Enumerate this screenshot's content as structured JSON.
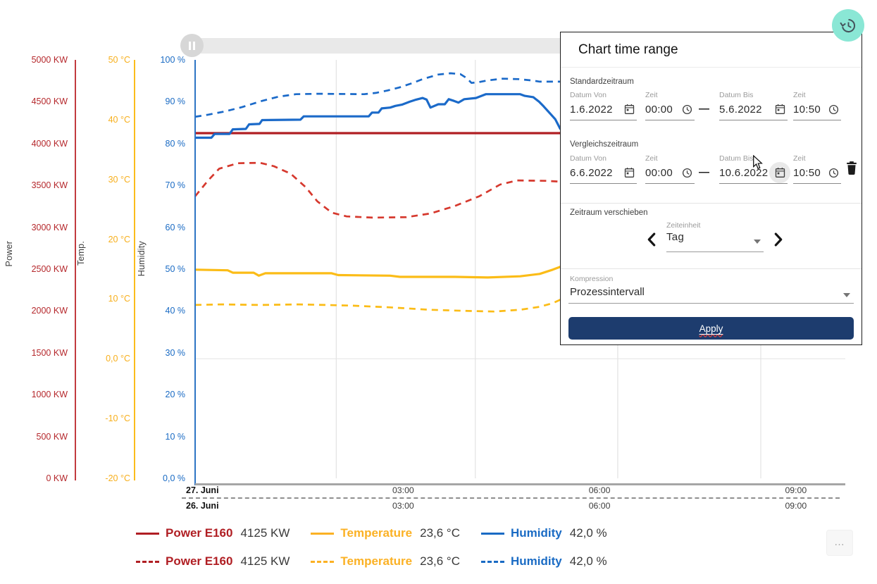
{
  "fab": {
    "icon": "history-icon",
    "color": "#8AE7D5"
  },
  "scrollbar": {
    "pause_icon": "pause-icon"
  },
  "more_button_label": "…",
  "dialog": {
    "title": "Chart time range",
    "range_separator": "—",
    "standard": {
      "label": "Standardzeitraum",
      "fields": [
        {
          "label": "Datum Von",
          "value": "1.6.2022",
          "icon": "calendar-icon"
        },
        {
          "label": "Zeit",
          "value": "00:00",
          "icon": "clock-icon"
        },
        {
          "label": "Datum Bis",
          "value": "5.6.2022",
          "icon": "calendar-icon"
        },
        {
          "label": "Zeit",
          "value": "10:50",
          "icon": "clock-icon"
        }
      ]
    },
    "comparison": {
      "label": "Vergleichszeitraum",
      "fields": [
        {
          "label": "Datum Von",
          "value": "6.6.2022",
          "icon": "calendar-icon"
        },
        {
          "label": "Zeit",
          "value": "00:00",
          "icon": "clock-icon"
        },
        {
          "label": "Datum Bis",
          "value": "10.6.2022",
          "icon": "calendar-icon"
        },
        {
          "label": "Zeit",
          "value": "10:50",
          "icon": "clock-icon"
        }
      ],
      "delete_icon": "trash-icon"
    },
    "shift": {
      "label": "Zeitraum verschieben",
      "unit_label": "Zeiteinheit",
      "unit_value": "Tag",
      "prev_icon": "chevron-left-icon",
      "next_icon": "chevron-right-icon"
    },
    "compression": {
      "label": "Kompression",
      "value": "Prozessintervall"
    },
    "apply_label": "Apply",
    "apply_color": "#1D3C6E"
  },
  "legend": {
    "rows": [
      {
        "style": "solid",
        "items": [
          {
            "label": "Power E160",
            "value": "4125 KW",
            "color": "#B01E23"
          },
          {
            "label": "Temperature",
            "value": "23,6 °C",
            "color": "#FBB124"
          },
          {
            "label": "Humidity",
            "value": "42,0 %",
            "color": "#1A6BC4"
          }
        ]
      },
      {
        "style": "dashed",
        "items": [
          {
            "label": "Power E160",
            "value": "4125 KW",
            "color": "#B01E23"
          },
          {
            "label": "Temperature",
            "value": "23,6 °C",
            "color": "#FBB124"
          },
          {
            "label": "Humidity",
            "value": "42,0 %",
            "color": "#1A6BC4"
          }
        ]
      }
    ]
  },
  "chart_data": {
    "type": "line",
    "title": "",
    "grid": true,
    "x_axis": {
      "rows": [
        {
          "date": "27. Juni",
          "ticks": [
            "03:00",
            "06:00",
            "09:00"
          ]
        },
        {
          "date": "26. Juni",
          "ticks": [
            "03:00",
            "06:00",
            "09:00"
          ]
        }
      ],
      "tick_t": [
        0.32,
        0.622,
        0.924
      ],
      "grid_t": [
        0.217,
        0.431,
        0.65,
        0.87
      ]
    },
    "y_axes": [
      {
        "key": "power",
        "title": "Power",
        "unit": "KW",
        "min": 0,
        "max": 5000,
        "color": "#B5282C",
        "line_color": "#C23B3F",
        "ticks": [
          {
            "label": "5000 KW",
            "value": 5000
          },
          {
            "label": "4500 KW",
            "value": 4500
          },
          {
            "label": "4000 KW",
            "value": 4000
          },
          {
            "label": "3500 KW",
            "value": 3500
          },
          {
            "label": "3000 KW",
            "value": 3000
          },
          {
            "label": "2500 KW",
            "value": 2500
          },
          {
            "label": "2000 KW",
            "value": 2000
          },
          {
            "label": "1500 KW",
            "value": 1500
          },
          {
            "label": "1000 KW",
            "value": 1000
          },
          {
            "label": "500 KW",
            "value": 500
          },
          {
            "label": "0 KW",
            "value": 0
          }
        ]
      },
      {
        "key": "temp",
        "title": "Temp.",
        "unit": "°C",
        "min": -20,
        "max": 50,
        "color": "#F7AF1C",
        "line_color": "#FBBC1C",
        "ticks": [
          {
            "label": "50 °C",
            "value": 50
          },
          {
            "label": "40 °C",
            "value": 40
          },
          {
            "label": "30 °C",
            "value": 30
          },
          {
            "label": "20 °C",
            "value": 20
          },
          {
            "label": "10 °C",
            "value": 10
          },
          {
            "label": "0,0 °C",
            "value": 0
          },
          {
            "label": "-10 °C",
            "value": -10
          },
          {
            "label": "-20 °C",
            "value": -20
          }
        ]
      },
      {
        "key": "humidity",
        "title": "Humidity",
        "unit": "%",
        "min": 0,
        "max": 100,
        "color": "#1A6BC4",
        "line_color": "#2E74C4",
        "ticks": [
          {
            "label": "100 %",
            "value": 100
          },
          {
            "label": "90 %",
            "value": 90
          },
          {
            "label": "80 %",
            "value": 80
          },
          {
            "label": "70 %",
            "value": 70
          },
          {
            "label": "60 %",
            "value": 60
          },
          {
            "label": "50 %",
            "value": 50
          },
          {
            "label": "40 %",
            "value": 40
          },
          {
            "label": "30 %",
            "value": 30
          },
          {
            "label": "20 %",
            "value": 20
          },
          {
            "label": "10 %",
            "value": 10
          },
          {
            "label": "0,0 %",
            "value": 0
          }
        ]
      }
    ],
    "zero_line": {
      "axis": "temp",
      "value": 0
    },
    "series": [
      {
        "name": "Power E160",
        "period": "27. Juni",
        "axis": "power",
        "style": "solid",
        "color": "#B01E23",
        "current_value": "4125 KW",
        "points": [
          [
            0,
            4125
          ],
          [
            1,
            4125
          ]
        ]
      },
      {
        "name": "Power E160",
        "period": "26. Juni",
        "axis": "power",
        "style": "dashed",
        "color": "#D6392E",
        "current_value": "4125 KW",
        "points": [
          [
            0,
            3370
          ],
          [
            0.02,
            3560
          ],
          [
            0.037,
            3700
          ],
          [
            0.066,
            3765
          ],
          [
            0.1,
            3770
          ],
          [
            0.121,
            3730
          ],
          [
            0.147,
            3640
          ],
          [
            0.17,
            3480
          ],
          [
            0.188,
            3310
          ],
          [
            0.21,
            3175
          ],
          [
            0.233,
            3130
          ],
          [
            0.273,
            3115
          ],
          [
            0.325,
            3120
          ],
          [
            0.362,
            3165
          ],
          [
            0.398,
            3250
          ],
          [
            0.437,
            3370
          ],
          [
            0.469,
            3510
          ],
          [
            0.495,
            3560
          ],
          [
            0.54,
            3555
          ],
          [
            0.562,
            3545
          ]
        ]
      },
      {
        "name": "Temperature",
        "period": "27. Juni",
        "axis": "temp",
        "style": "solid",
        "color": "#FBBC17",
        "current_value": "23,6 °C",
        "points": [
          [
            0,
            14.9
          ],
          [
            0.05,
            14.8
          ],
          [
            0.058,
            14.4
          ],
          [
            0.09,
            14.4
          ],
          [
            0.098,
            13.9
          ],
          [
            0.108,
            14.3
          ],
          [
            0.21,
            14.3
          ],
          [
            0.22,
            14.0
          ],
          [
            0.3,
            13.9
          ],
          [
            0.315,
            13.7
          ],
          [
            0.4,
            13.7
          ],
          [
            0.45,
            13.6
          ],
          [
            0.5,
            13.8
          ],
          [
            0.53,
            14.2
          ],
          [
            0.55,
            14.9
          ],
          [
            0.562,
            15.4
          ]
        ]
      },
      {
        "name": "Temperature",
        "period": "26. Juni",
        "axis": "temp",
        "style": "dashed",
        "color": "#FBBC17",
        "current_value": "23,6 °C",
        "points": [
          [
            0,
            9.0
          ],
          [
            0.04,
            9.1
          ],
          [
            0.1,
            9.0
          ],
          [
            0.16,
            9.1
          ],
          [
            0.2,
            9.0
          ],
          [
            0.24,
            8.9
          ],
          [
            0.3,
            8.6
          ],
          [
            0.36,
            8.2
          ],
          [
            0.42,
            8.0
          ],
          [
            0.46,
            7.9
          ],
          [
            0.5,
            8.2
          ],
          [
            0.53,
            8.7
          ],
          [
            0.55,
            9.3
          ],
          [
            0.562,
            9.9
          ]
        ]
      },
      {
        "name": "Humidity",
        "period": "27. Juni",
        "axis": "humidity",
        "style": "solid",
        "color": "#1B6AC9",
        "current_value": "42,0 %",
        "points": [
          [
            0,
            81.4
          ],
          [
            0.025,
            81.4
          ],
          [
            0.03,
            82.3
          ],
          [
            0.053,
            82.3
          ],
          [
            0.058,
            83.4
          ],
          [
            0.078,
            83.5
          ],
          [
            0.083,
            84.6
          ],
          [
            0.099,
            84.7
          ],
          [
            0.103,
            85.6
          ],
          [
            0.162,
            85.7
          ],
          [
            0.167,
            86.5
          ],
          [
            0.267,
            86.5
          ],
          [
            0.272,
            87.4
          ],
          [
            0.282,
            87.4
          ],
          [
            0.287,
            88.4
          ],
          [
            0.3,
            88.6
          ],
          [
            0.308,
            89.0
          ],
          [
            0.318,
            89.3
          ],
          [
            0.33,
            90.0
          ],
          [
            0.34,
            90.5
          ],
          [
            0.35,
            90.9
          ],
          [
            0.356,
            90.5
          ],
          [
            0.362,
            88.6
          ],
          [
            0.374,
            89.4
          ],
          [
            0.384,
            89.4
          ],
          [
            0.39,
            90.6
          ],
          [
            0.398,
            90.2
          ],
          [
            0.405,
            89.8
          ],
          [
            0.414,
            90.6
          ],
          [
            0.432,
            90.9
          ],
          [
            0.447,
            91.8
          ],
          [
            0.5,
            91.8
          ],
          [
            0.507,
            91.4
          ],
          [
            0.52,
            91.1
          ],
          [
            0.529,
            90.0
          ],
          [
            0.536,
            88.9
          ],
          [
            0.547,
            87.0
          ],
          [
            0.554,
            85.8
          ],
          [
            0.562,
            83.4
          ]
        ]
      },
      {
        "name": "Humidity",
        "period": "26. Juni",
        "axis": "humidity",
        "style": "dashed",
        "color": "#1B6AC9",
        "current_value": "42,0 %",
        "points": [
          [
            0,
            86.4
          ],
          [
            0.02,
            86.9
          ],
          [
            0.046,
            87.7
          ],
          [
            0.072,
            88.7
          ],
          [
            0.103,
            90.2
          ],
          [
            0.128,
            91.2
          ],
          [
            0.155,
            91.8
          ],
          [
            0.19,
            91.9
          ],
          [
            0.26,
            91.8
          ],
          [
            0.278,
            92.1
          ],
          [
            0.296,
            92.7
          ],
          [
            0.314,
            93.4
          ],
          [
            0.333,
            94.4
          ],
          [
            0.35,
            95.4
          ],
          [
            0.374,
            96.5
          ],
          [
            0.393,
            96.8
          ],
          [
            0.408,
            96.6
          ],
          [
            0.418,
            95.6
          ],
          [
            0.425,
            94.5
          ],
          [
            0.437,
            94.7
          ],
          [
            0.45,
            95.1
          ],
          [
            0.473,
            95.5
          ],
          [
            0.497,
            95.4
          ],
          [
            0.517,
            95.1
          ],
          [
            0.53,
            94.8
          ],
          [
            0.562,
            94.8
          ]
        ]
      }
    ]
  }
}
